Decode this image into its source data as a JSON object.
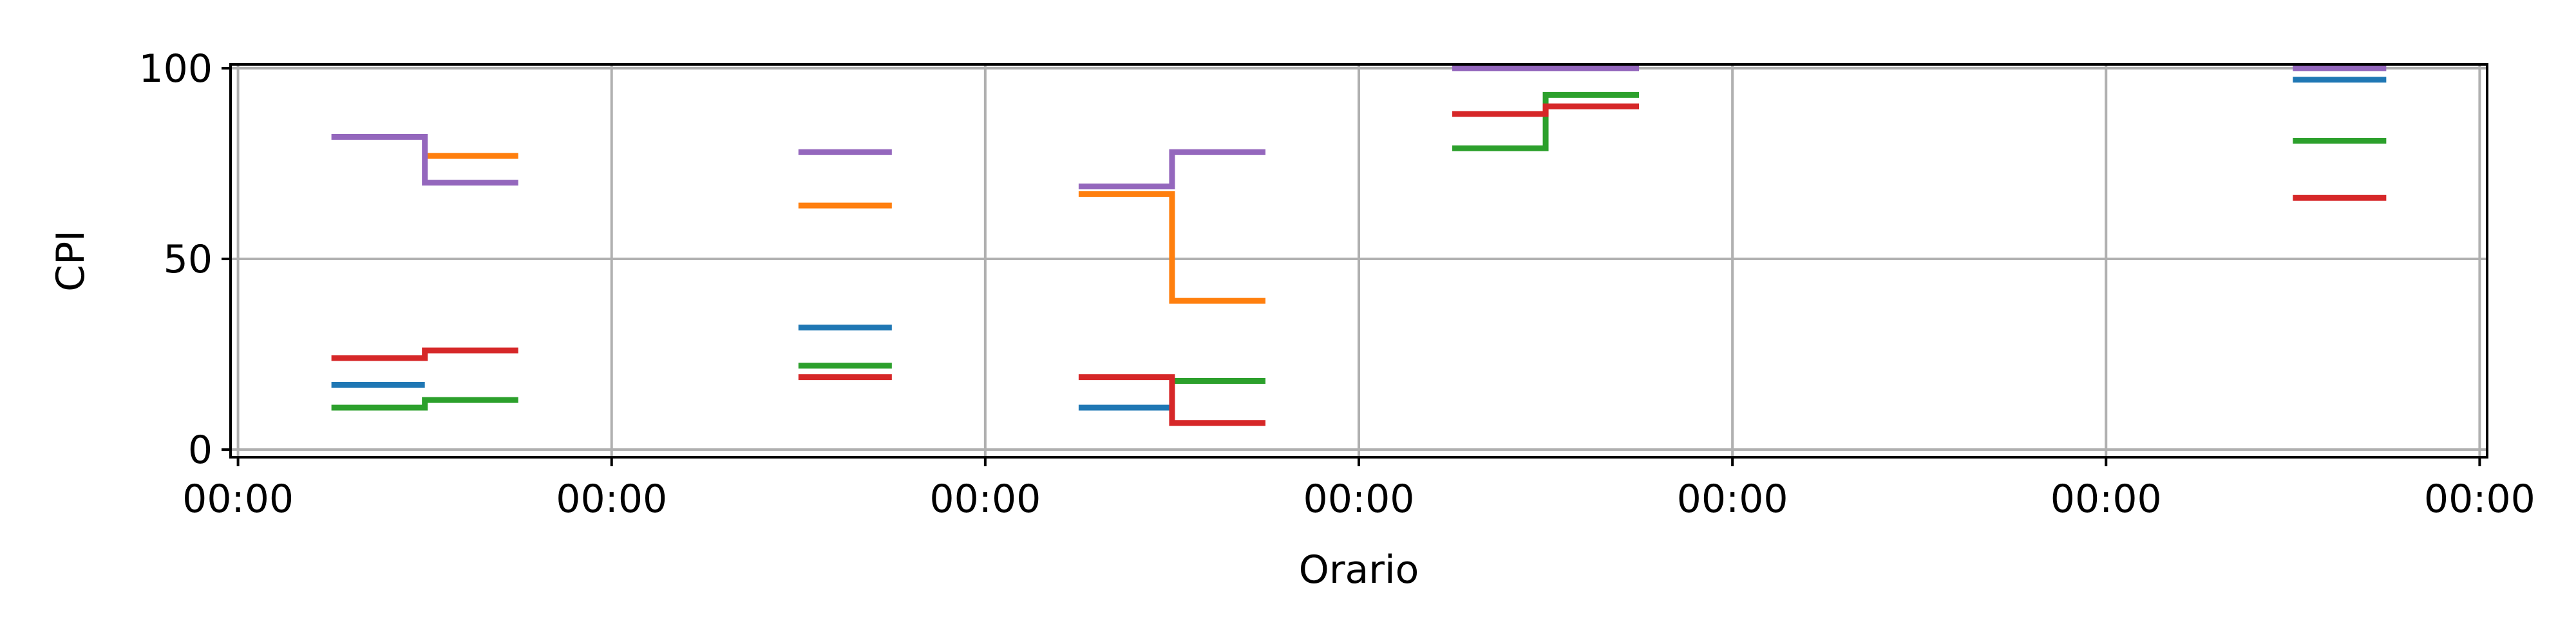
{
  "chart_data": {
    "type": "line",
    "step": "post",
    "title": "",
    "xlabel": "Orario",
    "ylabel": "CPI",
    "xlim": [
      -0.02,
      6.02
    ],
    "ylim": [
      -2,
      101
    ],
    "xtick_values": [
      0,
      1,
      2,
      3,
      4,
      5,
      6
    ],
    "xticks": [
      "00:00",
      "00:00",
      "00:00",
      "00:00",
      "00:00",
      "00:00",
      "00:00"
    ],
    "yticks": [
      0,
      50,
      100
    ],
    "grid": true,
    "colors": [
      "#1f77b4",
      "#ff7f0e",
      "#2ca02c",
      "#d62728",
      "#9467bd"
    ],
    "series": [
      {
        "color": "#1f77b4",
        "segments": [
          {
            "x": [
              0.25,
              0.5
            ],
            "y": [
              17,
              17
            ]
          },
          {
            "x": [
              1.5,
              1.75
            ],
            "y": [
              32,
              32
            ]
          },
          {
            "x": [
              2.25,
              2.5
            ],
            "y": [
              11,
              11
            ]
          },
          {
            "x": [
              5.5,
              5.75
            ],
            "y": [
              97,
              97
            ]
          }
        ]
      },
      {
        "color": "#ff7f0e",
        "segments": [
          {
            "x": [
              0.5,
              0.75
            ],
            "y": [
              77,
              77
            ]
          },
          {
            "x": [
              1.5,
              1.75
            ],
            "y": [
              64,
              64
            ]
          },
          {
            "x": [
              2.25,
              2.5,
              2.75
            ],
            "y": [
              67,
              39,
              39
            ]
          }
        ]
      },
      {
        "color": "#2ca02c",
        "segments": [
          {
            "x": [
              0.25,
              0.5,
              0.75
            ],
            "y": [
              11,
              13,
              13
            ]
          },
          {
            "x": [
              1.5,
              1.75
            ],
            "y": [
              22,
              22
            ]
          },
          {
            "x": [
              2.5,
              2.75
            ],
            "y": [
              18,
              18
            ]
          },
          {
            "x": [
              3.25,
              3.5,
              3.75
            ],
            "y": [
              79,
              93,
              93
            ]
          },
          {
            "x": [
              5.5,
              5.75
            ],
            "y": [
              81,
              81
            ]
          }
        ]
      },
      {
        "color": "#d62728",
        "segments": [
          {
            "x": [
              0.25,
              0.5,
              0.75
            ],
            "y": [
              24,
              26,
              26
            ]
          },
          {
            "x": [
              1.5,
              1.75
            ],
            "y": [
              19,
              19
            ]
          },
          {
            "x": [
              2.25,
              2.5,
              2.75
            ],
            "y": [
              19,
              7,
              7
            ]
          },
          {
            "x": [
              3.25,
              3.5,
              3.75
            ],
            "y": [
              88,
              90,
              90
            ]
          },
          {
            "x": [
              5.5,
              5.75
            ],
            "y": [
              66,
              66
            ]
          }
        ]
      },
      {
        "color": "#9467bd",
        "segments": [
          {
            "x": [
              0.25,
              0.5,
              0.75
            ],
            "y": [
              82,
              70,
              70
            ]
          },
          {
            "x": [
              1.5,
              1.75
            ],
            "y": [
              78,
              78
            ]
          },
          {
            "x": [
              2.25,
              2.5,
              2.75
            ],
            "y": [
              69,
              78,
              78
            ]
          },
          {
            "x": [
              3.25,
              3.75
            ],
            "y": [
              100,
              100
            ]
          },
          {
            "x": [
              5.5,
              5.75
            ],
            "y": [
              100,
              100
            ]
          }
        ]
      }
    ]
  }
}
